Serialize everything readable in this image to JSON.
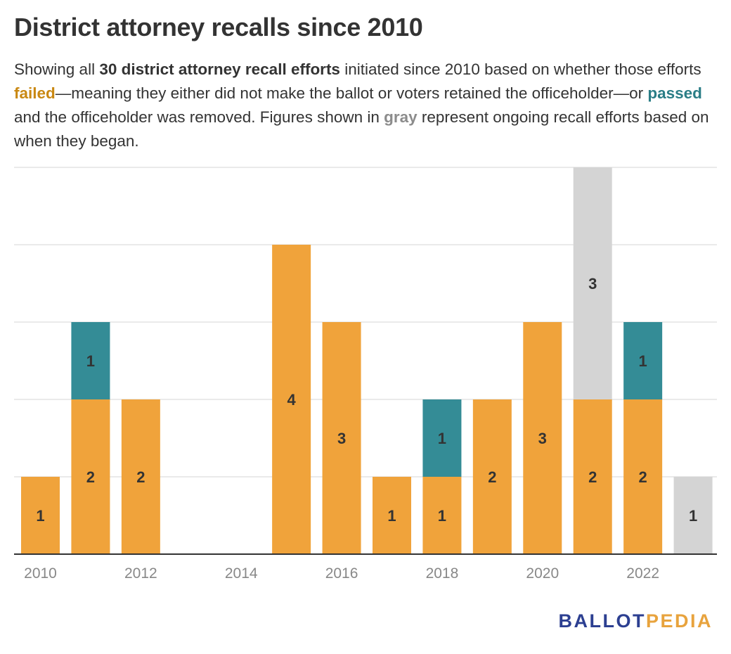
{
  "title": "District attorney recalls since 2010",
  "subtitle": {
    "s1": "Showing all ",
    "s2": "30 district attorney recall efforts",
    "s3": " initiated since 2010 based on whether those efforts ",
    "s4": "failed",
    "s5": "—meaning they either did not make the ballot or voters retained the officeholder—or ",
    "s6": "passed",
    "s7": " and the officeholder was removed. Figures shown in ",
    "s8": "gray",
    "s9": " represent ongoing recall efforts based on when they began."
  },
  "logo": {
    "part1": "BALLOT",
    "part2": "PEDIA"
  },
  "colors": {
    "failed": "#f0a33b",
    "passed": "#348c96",
    "ongoing": "#d4d4d4",
    "grid": "#e3e3e3",
    "axis": "#333333"
  },
  "chart_data": {
    "type": "bar",
    "stacked": true,
    "title": "District attorney recalls since 2010",
    "categories": [
      "2010",
      "2011",
      "2012",
      "2013",
      "2014",
      "2015",
      "2016",
      "2017",
      "2018",
      "2019",
      "2020",
      "2021",
      "2022",
      "2023"
    ],
    "xtick_labels": [
      "2010",
      "2012",
      "2014",
      "2016",
      "2018",
      "2020",
      "2022"
    ],
    "series": [
      {
        "name": "failed",
        "color": "#f0a33b",
        "values": [
          1,
          2,
          2,
          0,
          0,
          4,
          3,
          1,
          1,
          2,
          3,
          2,
          2,
          0
        ]
      },
      {
        "name": "passed",
        "color": "#348c96",
        "values": [
          0,
          1,
          0,
          0,
          0,
          0,
          0,
          0,
          1,
          0,
          0,
          0,
          1,
          0
        ]
      },
      {
        "name": "ongoing",
        "color": "#d4d4d4",
        "values": [
          0,
          0,
          0,
          0,
          0,
          0,
          0,
          0,
          0,
          0,
          0,
          3,
          0,
          1
        ]
      }
    ],
    "ylim": [
      0,
      5
    ],
    "grid": true,
    "xlabel": "",
    "ylabel": ""
  }
}
